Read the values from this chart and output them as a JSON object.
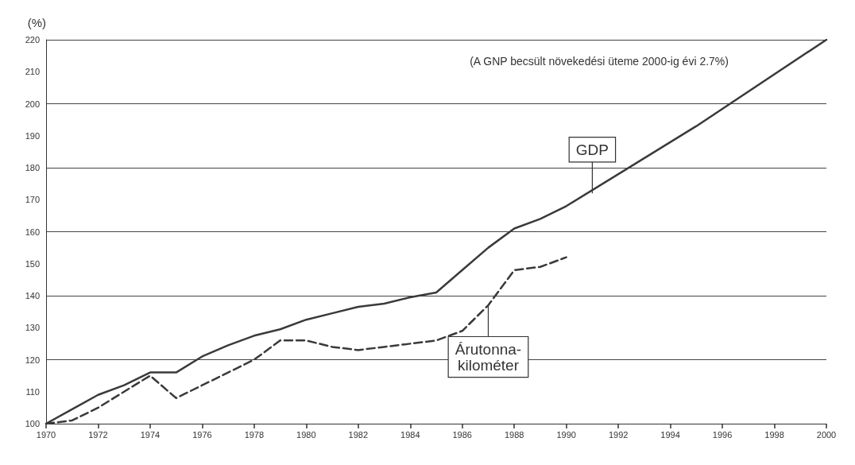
{
  "chart_data": {
    "type": "line",
    "ylabel": "(%)",
    "annotations": [
      "(A GNP becsült növekedési üteme 2000-ig évi 2.7%)",
      {
        "text": "GDP",
        "x": 1991,
        "y": 172
      },
      {
        "text": "Árutonna-kilométer",
        "x": 1987,
        "y": 137
      }
    ],
    "xlim": [
      1970,
      2000
    ],
    "xticks": [
      1970,
      1972,
      1974,
      1976,
      1978,
      1980,
      1982,
      1984,
      1986,
      1988,
      1990,
      1992,
      1994,
      1996,
      1998,
      2000
    ],
    "ylim": [
      100,
      220
    ],
    "yticks": [
      100,
      110,
      120,
      130,
      140,
      150,
      160,
      170,
      180,
      190,
      200,
      210,
      220
    ],
    "grid": "y",
    "marker": "none",
    "series": [
      {
        "color": "#3a3a3a",
        "line_style": "solid",
        "x": [
          1970,
          1971,
          1972,
          1973,
          1974,
          1975,
          1976,
          1977,
          1978,
          1979,
          1980,
          1981,
          1982,
          1983,
          1984,
          1985,
          1986,
          1987,
          1988,
          1989,
          1990,
          1995,
          2000
        ],
        "values": [
          100,
          104.5,
          109,
          112,
          116,
          116,
          121,
          124.5,
          127.5,
          129.5,
          132.5,
          134.5,
          136.5,
          137.5,
          139.5,
          141,
          148,
          155,
          161,
          164,
          168,
          193,
          220
        ]
      },
      {
        "color": "#3a3a3a",
        "line_style": "dashed",
        "x": [
          1970,
          1971,
          1972,
          1973,
          1974,
          1975,
          1976,
          1977,
          1978,
          1979,
          1980,
          1981,
          1982,
          1983,
          1984,
          1985,
          1986,
          1987,
          1988,
          1989,
          1990
        ],
        "values": [
          100,
          101,
          105,
          110,
          115,
          108,
          112,
          116,
          120,
          126,
          126,
          124,
          123,
          124,
          125,
          126,
          129,
          137,
          148,
          149,
          152
        ]
      }
    ]
  }
}
